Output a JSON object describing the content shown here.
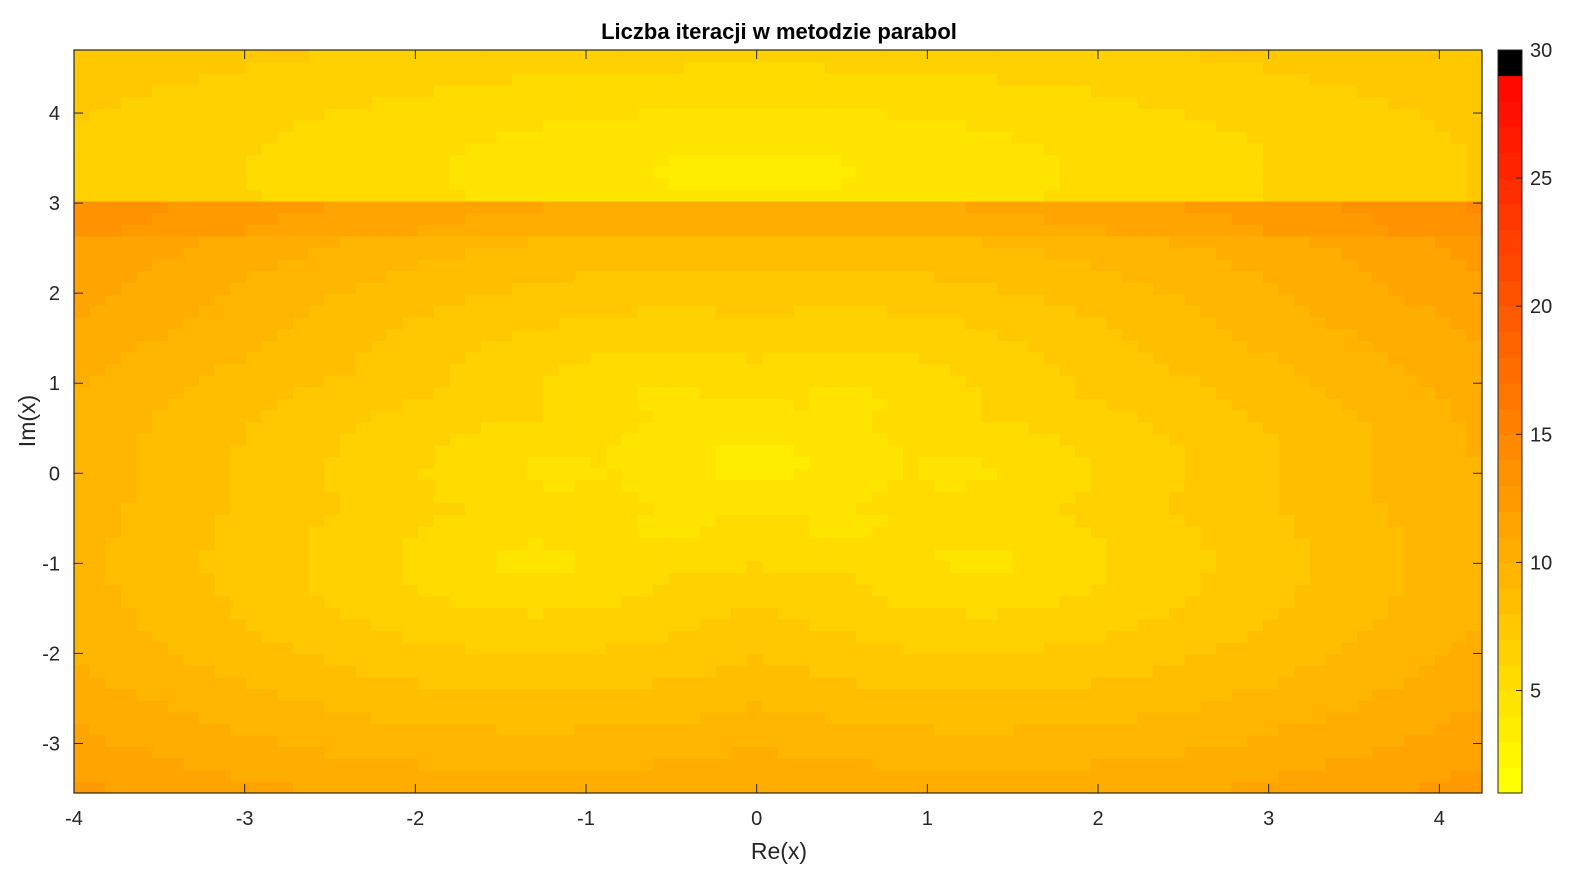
{
  "chart_data": {
    "type": "heatmap",
    "title": "Liczba iteracji w metodzie parabol",
    "xlabel": "Re(x)",
    "ylabel": "Im(x)",
    "xlim": [
      -4,
      4.25
    ],
    "ylim": [
      -3.55,
      4.7
    ],
    "xticks": [
      -4,
      -3,
      -2,
      -1,
      0,
      1,
      2,
      3,
      4
    ],
    "yticks": [
      -3,
      -2,
      -1,
      0,
      1,
      2,
      3,
      4
    ],
    "xtick_labels": [
      "-4",
      "-3",
      "-2",
      "-1",
      "0",
      "1",
      "2",
      "3",
      "4"
    ],
    "ytick_labels": [
      "-3",
      "-2",
      "-1",
      "0",
      "1",
      "2",
      "3",
      "4"
    ],
    "grid": false,
    "colormap": "autumn (flipped), black at maximum",
    "colorbar": {
      "range": [
        1,
        30
      ],
      "ticks": [
        5,
        10,
        15,
        20,
        25,
        30
      ],
      "tick_labels": [
        "5",
        "10",
        "15",
        "20",
        "25",
        "30"
      ],
      "low_color": "#ffff00",
      "high_color": "#ff0000",
      "max_color": "#000000"
    },
    "upper_band_boundary_im": 3.2,
    "low_iteration_centers": [
      {
        "re": 0,
        "im": 3.35,
        "iterations": 3
      },
      {
        "re": 0,
        "im": 0.15,
        "iterations": 3
      },
      {
        "re": -0.5,
        "im": 0.78,
        "iterations": 4
      },
      {
        "re": 0.5,
        "im": 0.78,
        "iterations": 4
      },
      {
        "re": -1.15,
        "im": 0.02,
        "iterations": 4
      },
      {
        "re": 1.15,
        "im": 0.02,
        "iterations": 4
      },
      {
        "re": -0.5,
        "im": -0.55,
        "iterations": 4
      },
      {
        "re": 0.5,
        "im": -0.55,
        "iterations": 4
      },
      {
        "re": -1.3,
        "im": -0.95,
        "iterations": 4
      },
      {
        "re": 1.3,
        "im": -0.95,
        "iterations": 4
      }
    ]
  }
}
